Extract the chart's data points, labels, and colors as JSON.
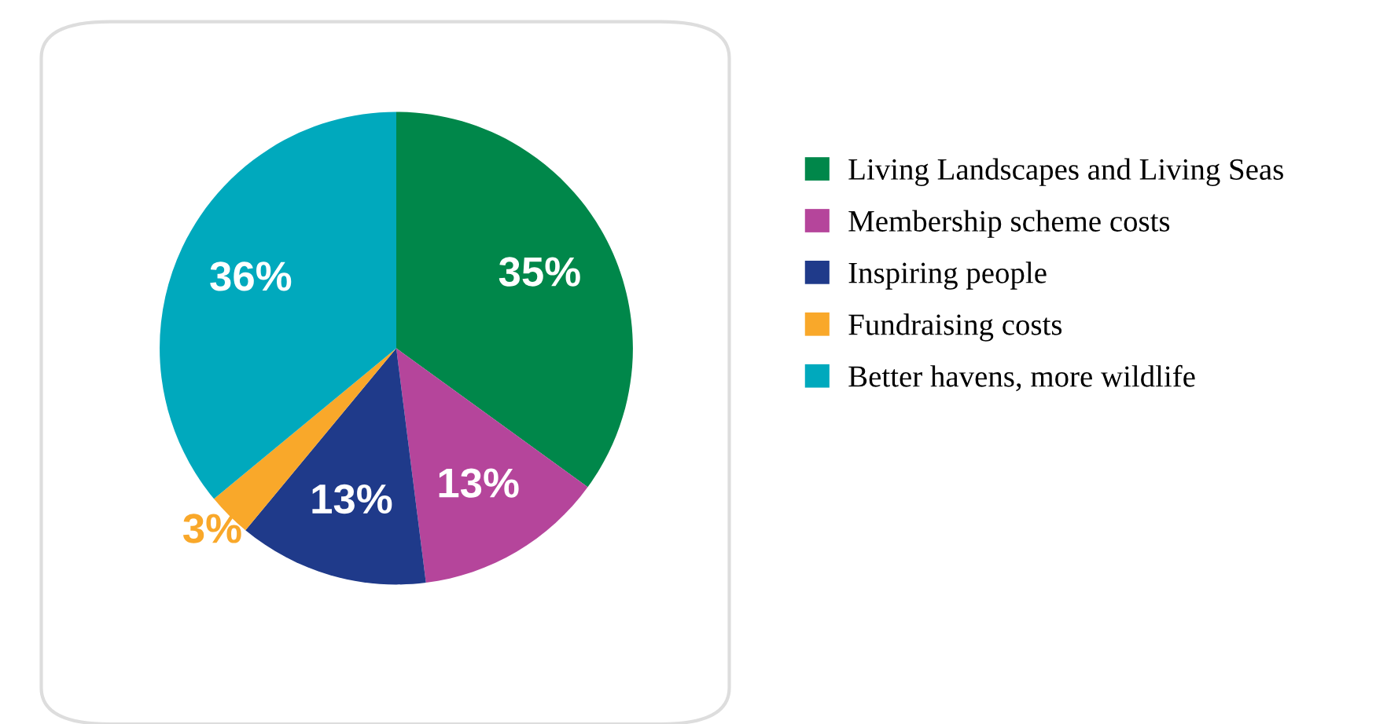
{
  "chart_data": {
    "type": "pie",
    "categories": [
      "Living Landscapes and Living Seas",
      "Membership scheme costs",
      "Inspiring people",
      "Fundraising costs",
      "Better havens, more wildlife"
    ],
    "values": [
      35,
      13,
      13,
      3,
      36
    ],
    "colors": [
      "#00874a",
      "#b5459b",
      "#1f3a8a",
      "#f9a82a",
      "#00a9bd"
    ],
    "value_labels": [
      "35%",
      "13%",
      "13%",
      "3%",
      "36%"
    ],
    "legend": "right"
  }
}
